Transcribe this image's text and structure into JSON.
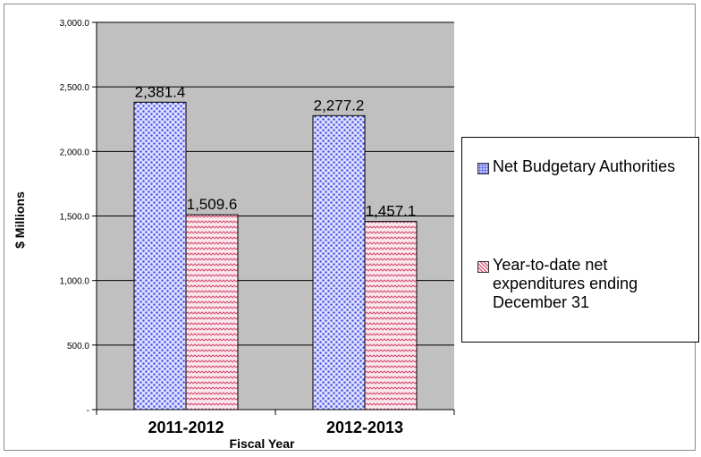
{
  "chart_data": {
    "type": "bar",
    "categories": [
      "2011-2012",
      "2012-2013"
    ],
    "series": [
      {
        "name": "Net Budgetary Authorities",
        "values": [
          2381.4,
          2277.2
        ],
        "labels": [
          "2,381.4",
          "2,277.2"
        ],
        "color": "#4f55e8"
      },
      {
        "name": "Year-to-date net expenditures ending December 31",
        "values": [
          1509.6,
          1457.1
        ],
        "labels": [
          "1,509.6",
          "1,457.1"
        ],
        "color": "#d14a6e"
      }
    ],
    "xlabel": "Fiscal Year",
    "ylabel": "$ Millions",
    "ylim": [
      0,
      3000
    ],
    "yticks": [
      0,
      500,
      1000,
      1500,
      2000,
      2500,
      3000
    ],
    "ytick_labels": [
      "-",
      "500.0",
      "1,000.0",
      "1,500.0",
      "2,000.0",
      "2,500.0",
      "3,000.0"
    ],
    "grid": true,
    "plot_background": "#c0c0c0",
    "legend_position": "right"
  }
}
